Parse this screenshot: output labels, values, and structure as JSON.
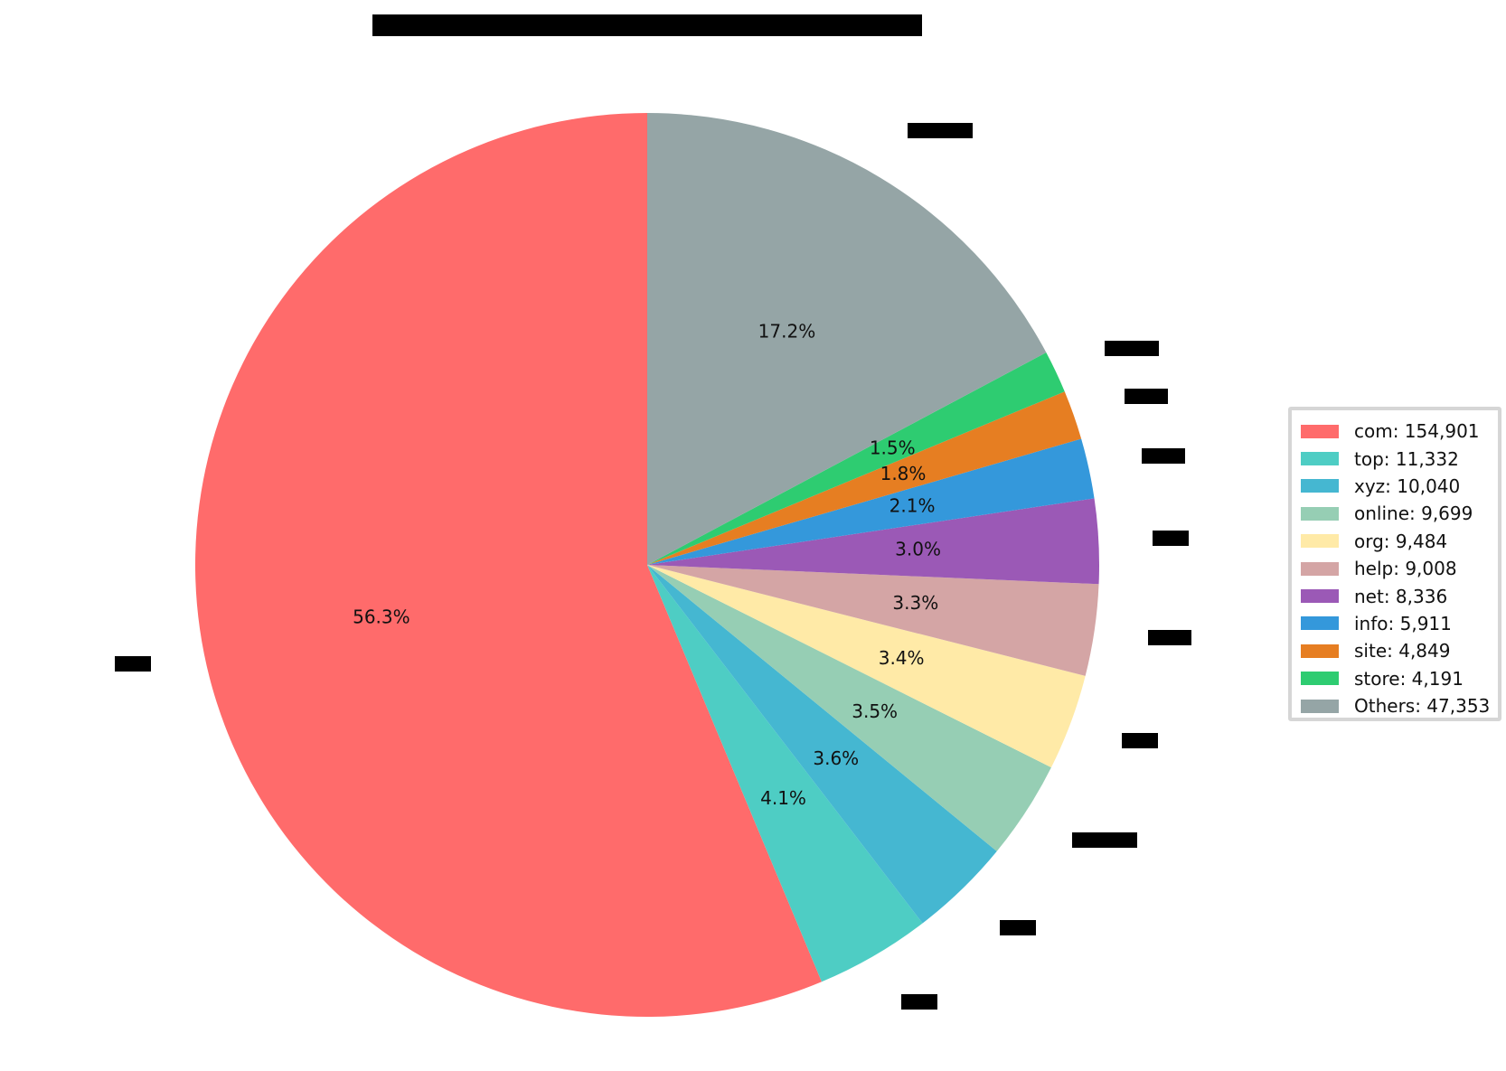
{
  "chart_data": {
    "type": "pie",
    "title": null,
    "title_note": "Title is redacted (black bar) in the source image",
    "outer_labels_note": "Outer slice labels are redacted (black bars) in the source image",
    "start_angle_deg": 90,
    "direction": "counterclockwise",
    "categories": [
      "com",
      "top",
      "xyz",
      "online",
      "org",
      "help",
      "net",
      "info",
      "site",
      "store",
      "Others"
    ],
    "values": [
      154901,
      11332,
      10040,
      9699,
      9484,
      9008,
      8336,
      5911,
      4849,
      4191,
      47353
    ],
    "percent_labels": [
      "56.3%",
      "4.1%",
      "3.6%",
      "3.5%",
      "3.4%",
      "3.3%",
      "3.0%",
      "2.1%",
      "1.8%",
      "1.5%",
      "17.2%"
    ],
    "colors": [
      "#ff6b6b",
      "#4ecdc4",
      "#45b7d1",
      "#96ceb4",
      "#ffeaa7",
      "#d4a5a5",
      "#9b59b6",
      "#3498db",
      "#e67e22",
      "#2ecc71",
      "#95a5a6"
    ],
    "legend_position": "right",
    "legend": [
      "com: 154,901",
      "top: 11,332",
      "xyz: 10,040",
      "online: 9,699",
      "org: 9,484",
      "help: 9,008",
      "net: 8,336",
      "info: 5,911",
      "site: 4,849",
      "store: 4,191",
      "Others: 47,353"
    ]
  }
}
